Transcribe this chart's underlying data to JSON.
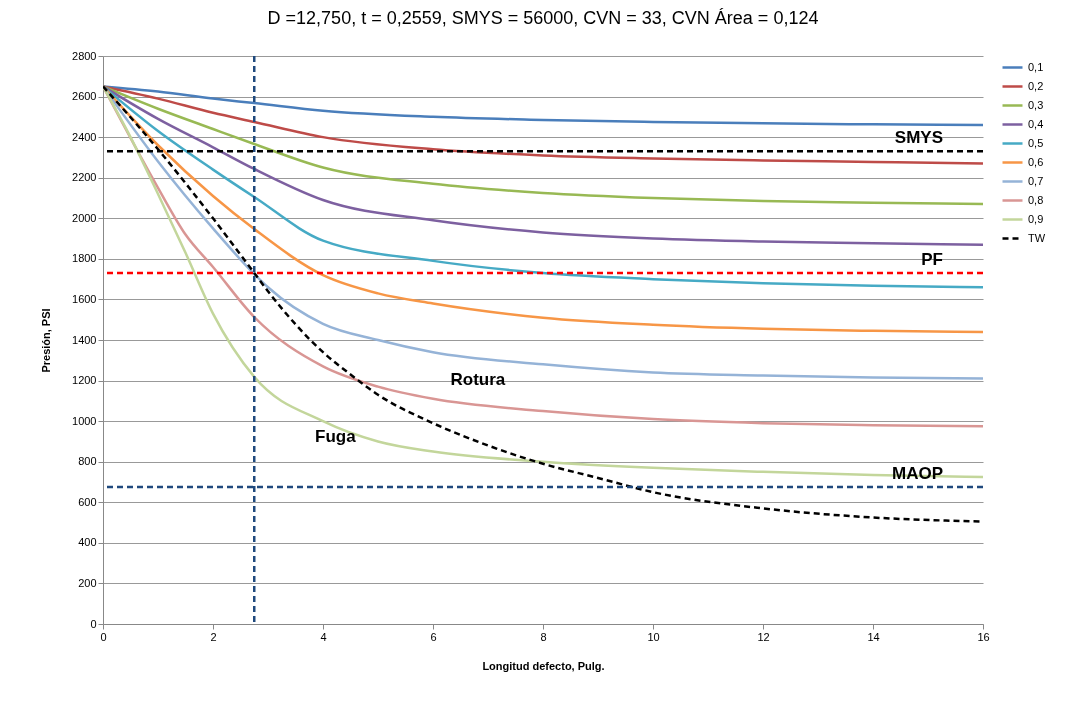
{
  "chart_data": {
    "type": "line",
    "title": "D =12,750,  t = 0,2559,  SMYS = 56000,  CVN = 33,  CVN Área = 0,124",
    "xlabel": "Longitud defecto, Pulg.",
    "ylabel": "Presión, PSI",
    "xlim": [
      0,
      16
    ],
    "xticks": [
      0,
      2,
      4,
      6,
      8,
      10,
      12,
      14,
      16
    ],
    "ylim": [
      0,
      2800
    ],
    "yticks": [
      0,
      200,
      400,
      600,
      800,
      1000,
      1200,
      1400,
      1600,
      1800,
      2000,
      2200,
      2400,
      2600,
      2800
    ],
    "grid": "y",
    "legend": "right",
    "series": [
      {
        "name": "0,1",
        "color": "#4a7ebb",
        "x": [
          0,
          1,
          2,
          2.75,
          4,
          6,
          8,
          10,
          12,
          14,
          16
        ],
        "values": [
          2650,
          2625,
          2590,
          2568,
          2530,
          2500,
          2485,
          2475,
          2468,
          2463,
          2460
        ]
      },
      {
        "name": "0,2",
        "color": "#be4b48",
        "x": [
          0,
          1,
          2,
          2.75,
          4,
          6,
          8,
          10,
          12,
          14,
          16
        ],
        "values": [
          2650,
          2590,
          2520,
          2475,
          2400,
          2340,
          2310,
          2295,
          2285,
          2278,
          2270
        ]
      },
      {
        "name": "0,3",
        "color": "#98b954",
        "x": [
          0,
          1,
          2,
          2.75,
          4,
          6,
          8,
          10,
          12,
          14,
          16
        ],
        "values": [
          2650,
          2540,
          2440,
          2366,
          2250,
          2170,
          2125,
          2100,
          2085,
          2077,
          2070
        ]
      },
      {
        "name": "0,4",
        "color": "#7d60a0",
        "x": [
          0,
          1,
          2,
          2.75,
          4,
          6,
          8,
          10,
          12,
          14,
          16
        ],
        "values": [
          2650,
          2490,
          2350,
          2243,
          2090,
          1990,
          1930,
          1900,
          1885,
          1877,
          1870
        ]
      },
      {
        "name": "0,5",
        "color": "#46aac5",
        "x": [
          0,
          1,
          2,
          2.75,
          4,
          6,
          8,
          10,
          12,
          14,
          16
        ],
        "values": [
          2650,
          2430,
          2240,
          2105,
          1890,
          1790,
          1730,
          1700,
          1680,
          1668,
          1660
        ]
      },
      {
        "name": "0,6",
        "color": "#f79646",
        "x": [
          0,
          1,
          2,
          2.75,
          4,
          5,
          6,
          8,
          10,
          12,
          14,
          16
        ],
        "values": [
          2650,
          2360,
          2110,
          1947,
          1720,
          1630,
          1580,
          1510,
          1475,
          1455,
          1445,
          1440
        ]
      },
      {
        "name": "0,7",
        "color": "#95b3d7",
        "x": [
          0,
          1,
          2,
          2.75,
          3,
          4,
          5,
          6,
          8,
          10,
          12,
          14,
          16
        ],
        "values": [
          2650,
          2280,
          1950,
          1725,
          1660,
          1480,
          1400,
          1340,
          1280,
          1240,
          1225,
          1215,
          1210
        ]
      },
      {
        "name": "0,8",
        "color": "#d99694",
        "x": [
          0,
          1,
          1.5,
          2,
          2.75,
          4,
          5,
          6,
          8,
          10,
          12,
          14,
          16
        ],
        "values": [
          2650,
          2150,
          1920,
          1760,
          1513,
          1270,
          1170,
          1110,
          1050,
          1010,
          990,
          980,
          975
        ]
      },
      {
        "name": "0,9",
        "color": "#c3d69b",
        "x": [
          0,
          0.5,
          1,
          1.5,
          2,
          2.75,
          4,
          5,
          6,
          8,
          10,
          12,
          14,
          16
        ],
        "values": [
          2650,
          2400,
          2120,
          1830,
          1530,
          1218,
          1000,
          900,
          850,
          800,
          770,
          750,
          735,
          725
        ]
      },
      {
        "name": "TW",
        "color": "#000000",
        "line_style": "dashed",
        "x": [
          0,
          1,
          2,
          2.75,
          3,
          4,
          4.5,
          5,
          6,
          7,
          8,
          9,
          10,
          12,
          14,
          16
        ],
        "values": [
          2650,
          2340,
          2000,
          1730,
          1640,
          1340,
          1230,
          1130,
          990,
          880,
          790,
          720,
          650,
          570,
          525,
          505
        ]
      }
    ],
    "ref_lines": [
      {
        "axis": "y",
        "value": 2330,
        "label": "SMYS",
        "color": "#000000",
        "line_style": "dashed"
      },
      {
        "axis": "y",
        "value": 1730,
        "label": "PF",
        "color": "#ff0000",
        "line_style": "dashed"
      },
      {
        "axis": "y",
        "value": 675,
        "label": "MAOP",
        "color": "#1f497d",
        "line_style": "dashed"
      },
      {
        "axis": "x",
        "value": 2.75,
        "color": "#1f497d",
        "line_style": "dashed"
      }
    ],
    "annotations": [
      "Rotura",
      "Fuga"
    ]
  }
}
